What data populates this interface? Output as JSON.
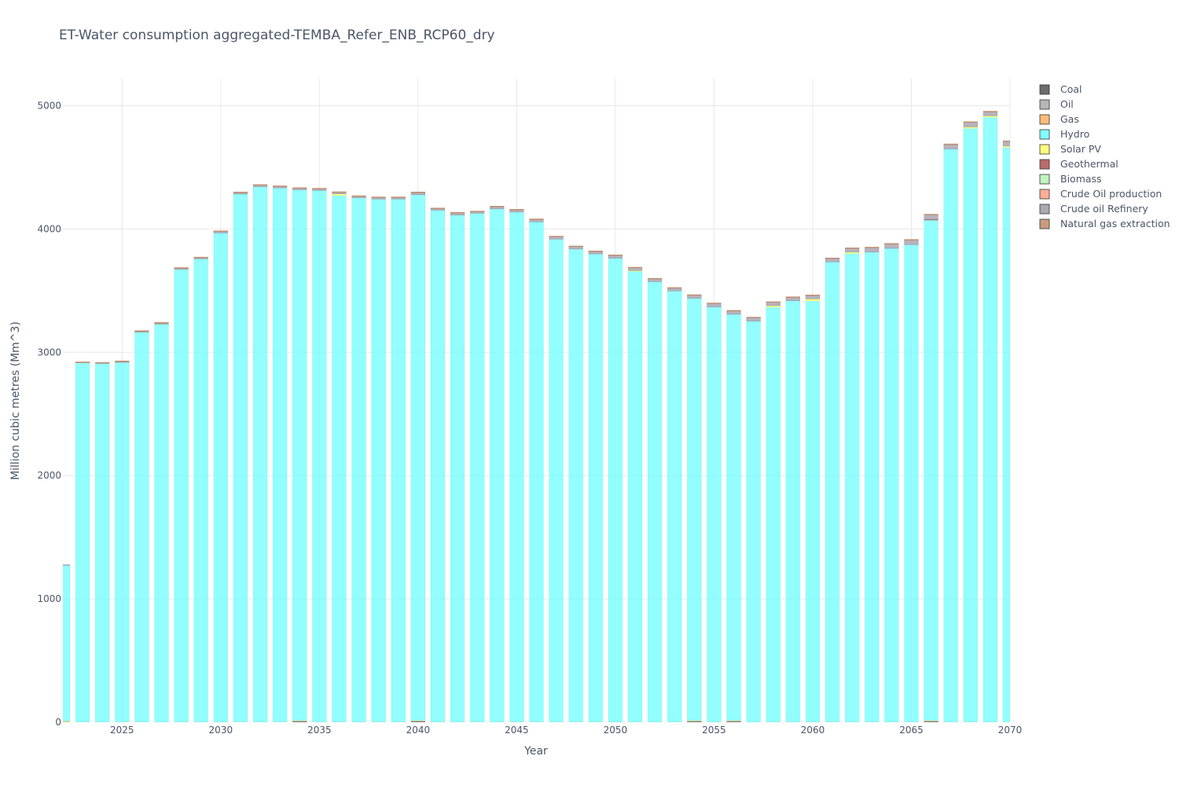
{
  "chart_data": {
    "type": "bar",
    "stacked": true,
    "title": "ET-Water consumption aggregated-TEMBA_Refer_ENB_RCP60_dry",
    "xlabel": "Year",
    "ylabel": "Million cubic metres (Mm^3)",
    "xlim": [
      2022,
      2070
    ],
    "ylim": [
      0,
      5220
    ],
    "x_ticks": [
      2025,
      2030,
      2035,
      2040,
      2045,
      2050,
      2055,
      2060,
      2065,
      2070
    ],
    "y_ticks": [
      0,
      1000,
      2000,
      3000,
      4000,
      5000
    ],
    "grid": true,
    "legend_position": "right",
    "categories": [
      2022,
      2023,
      2024,
      2025,
      2026,
      2027,
      2028,
      2029,
      2030,
      2031,
      2032,
      2033,
      2034,
      2035,
      2036,
      2037,
      2038,
      2039,
      2040,
      2041,
      2042,
      2043,
      2044,
      2045,
      2046,
      2047,
      2048,
      2049,
      2050,
      2051,
      2052,
      2053,
      2054,
      2055,
      2056,
      2057,
      2058,
      2059,
      2060,
      2061,
      2062,
      2063,
      2064,
      2065,
      2066,
      2067,
      2068,
      2069,
      2070
    ],
    "series": [
      {
        "name": "Coal",
        "color": "#555555",
        "values": [
          0,
          0,
          0,
          0,
          0,
          0,
          0,
          0,
          0,
          0,
          0,
          0,
          10,
          0,
          0,
          0,
          0,
          0,
          10,
          0,
          0,
          0,
          0,
          0,
          0,
          0,
          0,
          0,
          0,
          0,
          0,
          0,
          10,
          0,
          10,
          0,
          0,
          0,
          0,
          0,
          0,
          0,
          0,
          0,
          10,
          0,
          0,
          0,
          0
        ]
      },
      {
        "name": "Oil",
        "color": "#a9a9a9",
        "values": [
          0,
          0,
          0,
          0,
          0,
          0,
          0,
          0,
          0,
          0,
          0,
          0,
          0,
          0,
          0,
          0,
          0,
          0,
          0,
          0,
          0,
          0,
          0,
          0,
          0,
          0,
          0,
          0,
          0,
          0,
          0,
          0,
          0,
          0,
          0,
          0,
          0,
          0,
          0,
          0,
          0,
          0,
          0,
          0,
          0,
          0,
          0,
          0,
          0
        ]
      },
      {
        "name": "Gas",
        "color": "#ffb061",
        "values": [
          10,
          3,
          3,
          3,
          3,
          3,
          3,
          3,
          3,
          3,
          3,
          3,
          3,
          3,
          3,
          3,
          3,
          3,
          3,
          3,
          3,
          3,
          3,
          3,
          3,
          3,
          3,
          3,
          3,
          3,
          3,
          3,
          3,
          3,
          3,
          3,
          3,
          3,
          3,
          3,
          3,
          3,
          3,
          3,
          3,
          3,
          3,
          3,
          3
        ]
      },
      {
        "name": "Hydro",
        "color": "#6ffefe",
        "values": [
          1265,
          2915,
          2910,
          2915,
          3160,
          3225,
          3670,
          3755,
          3965,
          4280,
          4340,
          4330,
          4305,
          4310,
          4270,
          4250,
          4240,
          4240,
          4265,
          4150,
          4110,
          4125,
          4160,
          4135,
          4055,
          3915,
          3835,
          3795,
          3760,
          3655,
          3570,
          3495,
          3425,
          3365,
          3295,
          3250,
          3365,
          3415,
          3415,
          3730,
          3800,
          3810,
          3840,
          3870,
          4060,
          4645,
          4815,
          4905,
          4660
        ]
      },
      {
        "name": "Solar PV",
        "color": "#ffff66",
        "values": [
          0,
          0,
          0,
          0,
          0,
          0,
          0,
          0,
          0,
          0,
          0,
          0,
          0,
          0,
          12,
          0,
          0,
          0,
          0,
          0,
          0,
          0,
          0,
          0,
          0,
          0,
          0,
          0,
          0,
          5,
          0,
          0,
          0,
          0,
          0,
          0,
          10,
          0,
          15,
          0,
          10,
          0,
          0,
          0,
          0,
          0,
          10,
          10,
          10
        ]
      },
      {
        "name": "Geothermal",
        "color": "#b05050",
        "values": [
          0,
          0,
          0,
          0,
          0,
          0,
          0,
          0,
          0,
          0,
          0,
          0,
          0,
          0,
          0,
          0,
          0,
          0,
          0,
          0,
          0,
          0,
          0,
          0,
          0,
          0,
          0,
          0,
          0,
          0,
          0,
          0,
          0,
          0,
          0,
          0,
          0,
          0,
          0,
          0,
          0,
          0,
          0,
          0,
          5,
          0,
          0,
          0,
          0
        ]
      },
      {
        "name": "Biomass",
        "color": "#b6f2b6",
        "values": [
          0,
          0,
          0,
          0,
          0,
          0,
          0,
          0,
          0,
          0,
          0,
          0,
          0,
          0,
          0,
          0,
          0,
          0,
          0,
          0,
          0,
          0,
          0,
          0,
          0,
          0,
          0,
          0,
          0,
          0,
          0,
          0,
          0,
          0,
          0,
          0,
          0,
          0,
          0,
          0,
          0,
          0,
          0,
          0,
          0,
          0,
          0,
          0,
          0
        ]
      },
      {
        "name": "Crude Oil production",
        "color": "#ffa084",
        "values": [
          0,
          0,
          0,
          0,
          0,
          0,
          0,
          0,
          0,
          0,
          0,
          0,
          0,
          0,
          0,
          0,
          0,
          0,
          0,
          0,
          0,
          0,
          0,
          0,
          0,
          0,
          0,
          0,
          0,
          0,
          0,
          0,
          0,
          0,
          0,
          0,
          0,
          0,
          0,
          0,
          0,
          0,
          0,
          0,
          0,
          0,
          0,
          0,
          0
        ]
      },
      {
        "name": "Crude oil Refinery",
        "color": "#9e9aa6",
        "values": [
          2,
          2,
          2,
          10,
          10,
          12,
          12,
          12,
          15,
          15,
          15,
          15,
          15,
          15,
          15,
          15,
          15,
          15,
          20,
          15,
          20,
          15,
          20,
          20,
          22,
          22,
          22,
          22,
          25,
          25,
          25,
          25,
          27,
          30,
          30,
          30,
          30,
          30,
          30,
          30,
          32,
          38,
          38,
          40,
          40,
          40,
          40,
          35,
          40
        ]
      },
      {
        "name": "Natural gas extraction",
        "color": "#c08a6a",
        "values": [
          0,
          2,
          2,
          2,
          2,
          2,
          2,
          2,
          2,
          2,
          2,
          2,
          2,
          2,
          2,
          2,
          2,
          2,
          2,
          2,
          2,
          2,
          2,
          2,
          2,
          2,
          2,
          2,
          2,
          2,
          2,
          2,
          2,
          2,
          2,
          2,
          2,
          2,
          2,
          2,
          2,
          2,
          2,
          2,
          2,
          2,
          2,
          2,
          2
        ]
      }
    ]
  }
}
